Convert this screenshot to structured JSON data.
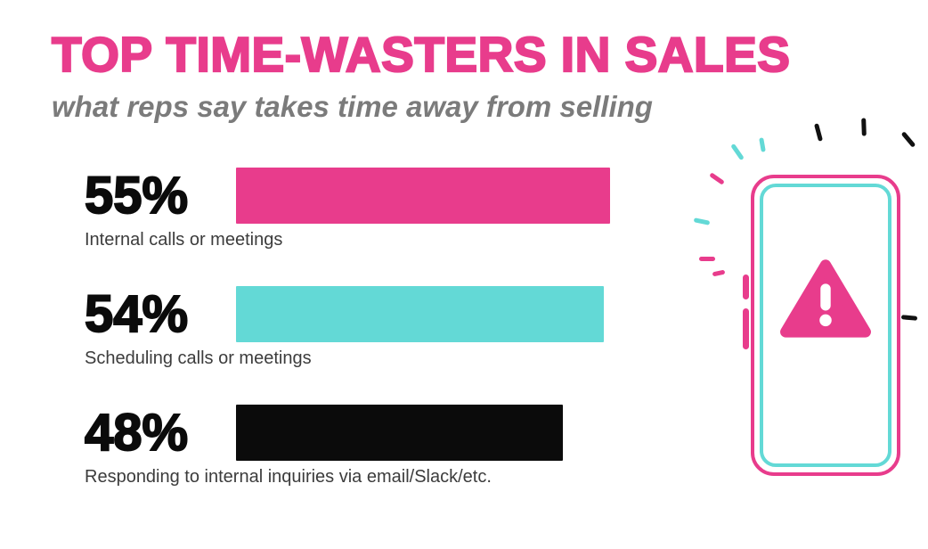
{
  "header": {
    "title": "TOP TIME-WASTERS IN SALES",
    "subtitle": "what reps say takes time away from selling"
  },
  "colors": {
    "pink": "#E83C8C",
    "teal": "#63D9D6",
    "subtitle_gray": "#7B7B7B",
    "label_gray": "#3C3C3C"
  },
  "chart_data": {
    "type": "bar",
    "orientation": "horizontal",
    "title": "TOP TIME-WASTERS IN SALES",
    "subtitle": "what reps say takes time away from selling",
    "value_unit": "%",
    "xlim": [
      0,
      60
    ],
    "grid": false,
    "legend": false,
    "rows": [
      {
        "pct_label": "55%",
        "value": 55,
        "label": "Internal calls or meetings",
        "color": "#E83C8C"
      },
      {
        "pct_label": "54%",
        "value": 54,
        "label": "Scheduling calls or meetings",
        "color": "#63D9D6"
      },
      {
        "pct_label": "48%",
        "value": 48,
        "label": "Responding to internal inquiries via email/Slack/etc.",
        "color": "#0B0B0B"
      }
    ]
  },
  "illustration": {
    "name": "phone-with-warning",
    "warning_icon": "exclamation-triangle-icon"
  }
}
